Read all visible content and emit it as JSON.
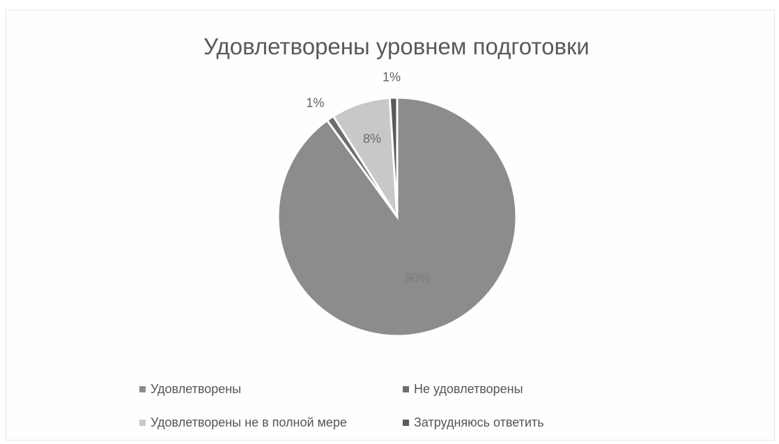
{
  "chart_data": {
    "type": "pie",
    "title": "Удовлетворены уровнем подготовки",
    "categories": [
      "Удовлетворены",
      "Не удовлетворены",
      "Удовлетворены не в полной мере",
      "Затрудняюсь ответить"
    ],
    "values": [
      90,
      1,
      8,
      1
    ],
    "data_labels": [
      "90%",
      "1%",
      "8%",
      "1%"
    ],
    "colors": [
      "#8c8c8c",
      "#6e6e6e",
      "#c8c8c8",
      "#5a5a5a"
    ],
    "legend_position": "bottom"
  }
}
